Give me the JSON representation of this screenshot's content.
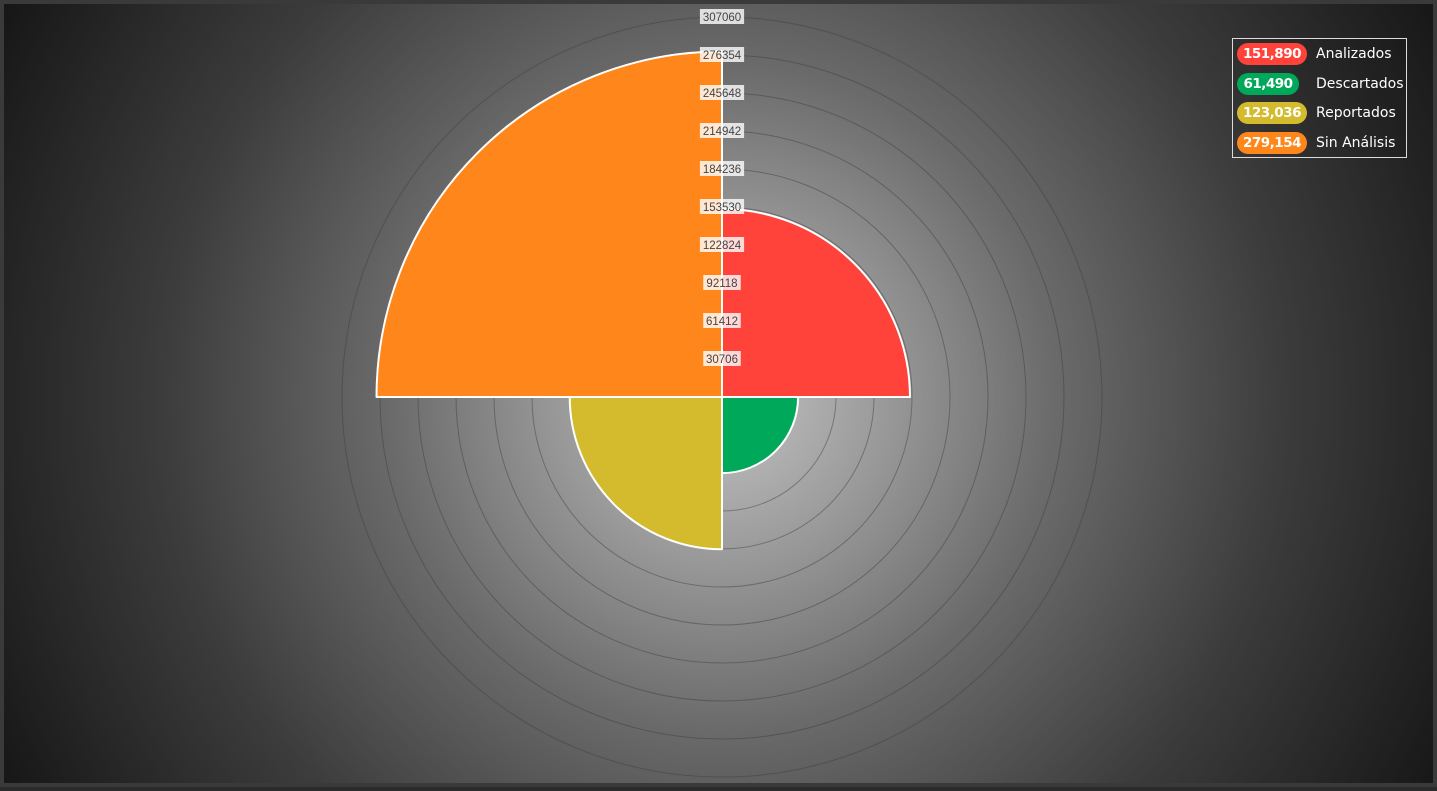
{
  "chart_data": {
    "type": "polar-area",
    "categories": [
      "Analizados",
      "Descartados",
      "Reportados",
      "Sin Análisis"
    ],
    "values": [
      151890,
      61490,
      123036,
      279154
    ],
    "value_labels": [
      "151,890",
      "61,490",
      "123,036",
      "279,154"
    ],
    "colors": [
      "#ff433a",
      "#00a85a",
      "#d4bb2e",
      "#ff861a"
    ],
    "radial_ticks": [
      "30706",
      "61412",
      "92118",
      "122824",
      "153530",
      "184236",
      "214942",
      "245648",
      "276354",
      "307060"
    ],
    "rmax": 307060,
    "grid": true,
    "legend_position": "top-right"
  }
}
